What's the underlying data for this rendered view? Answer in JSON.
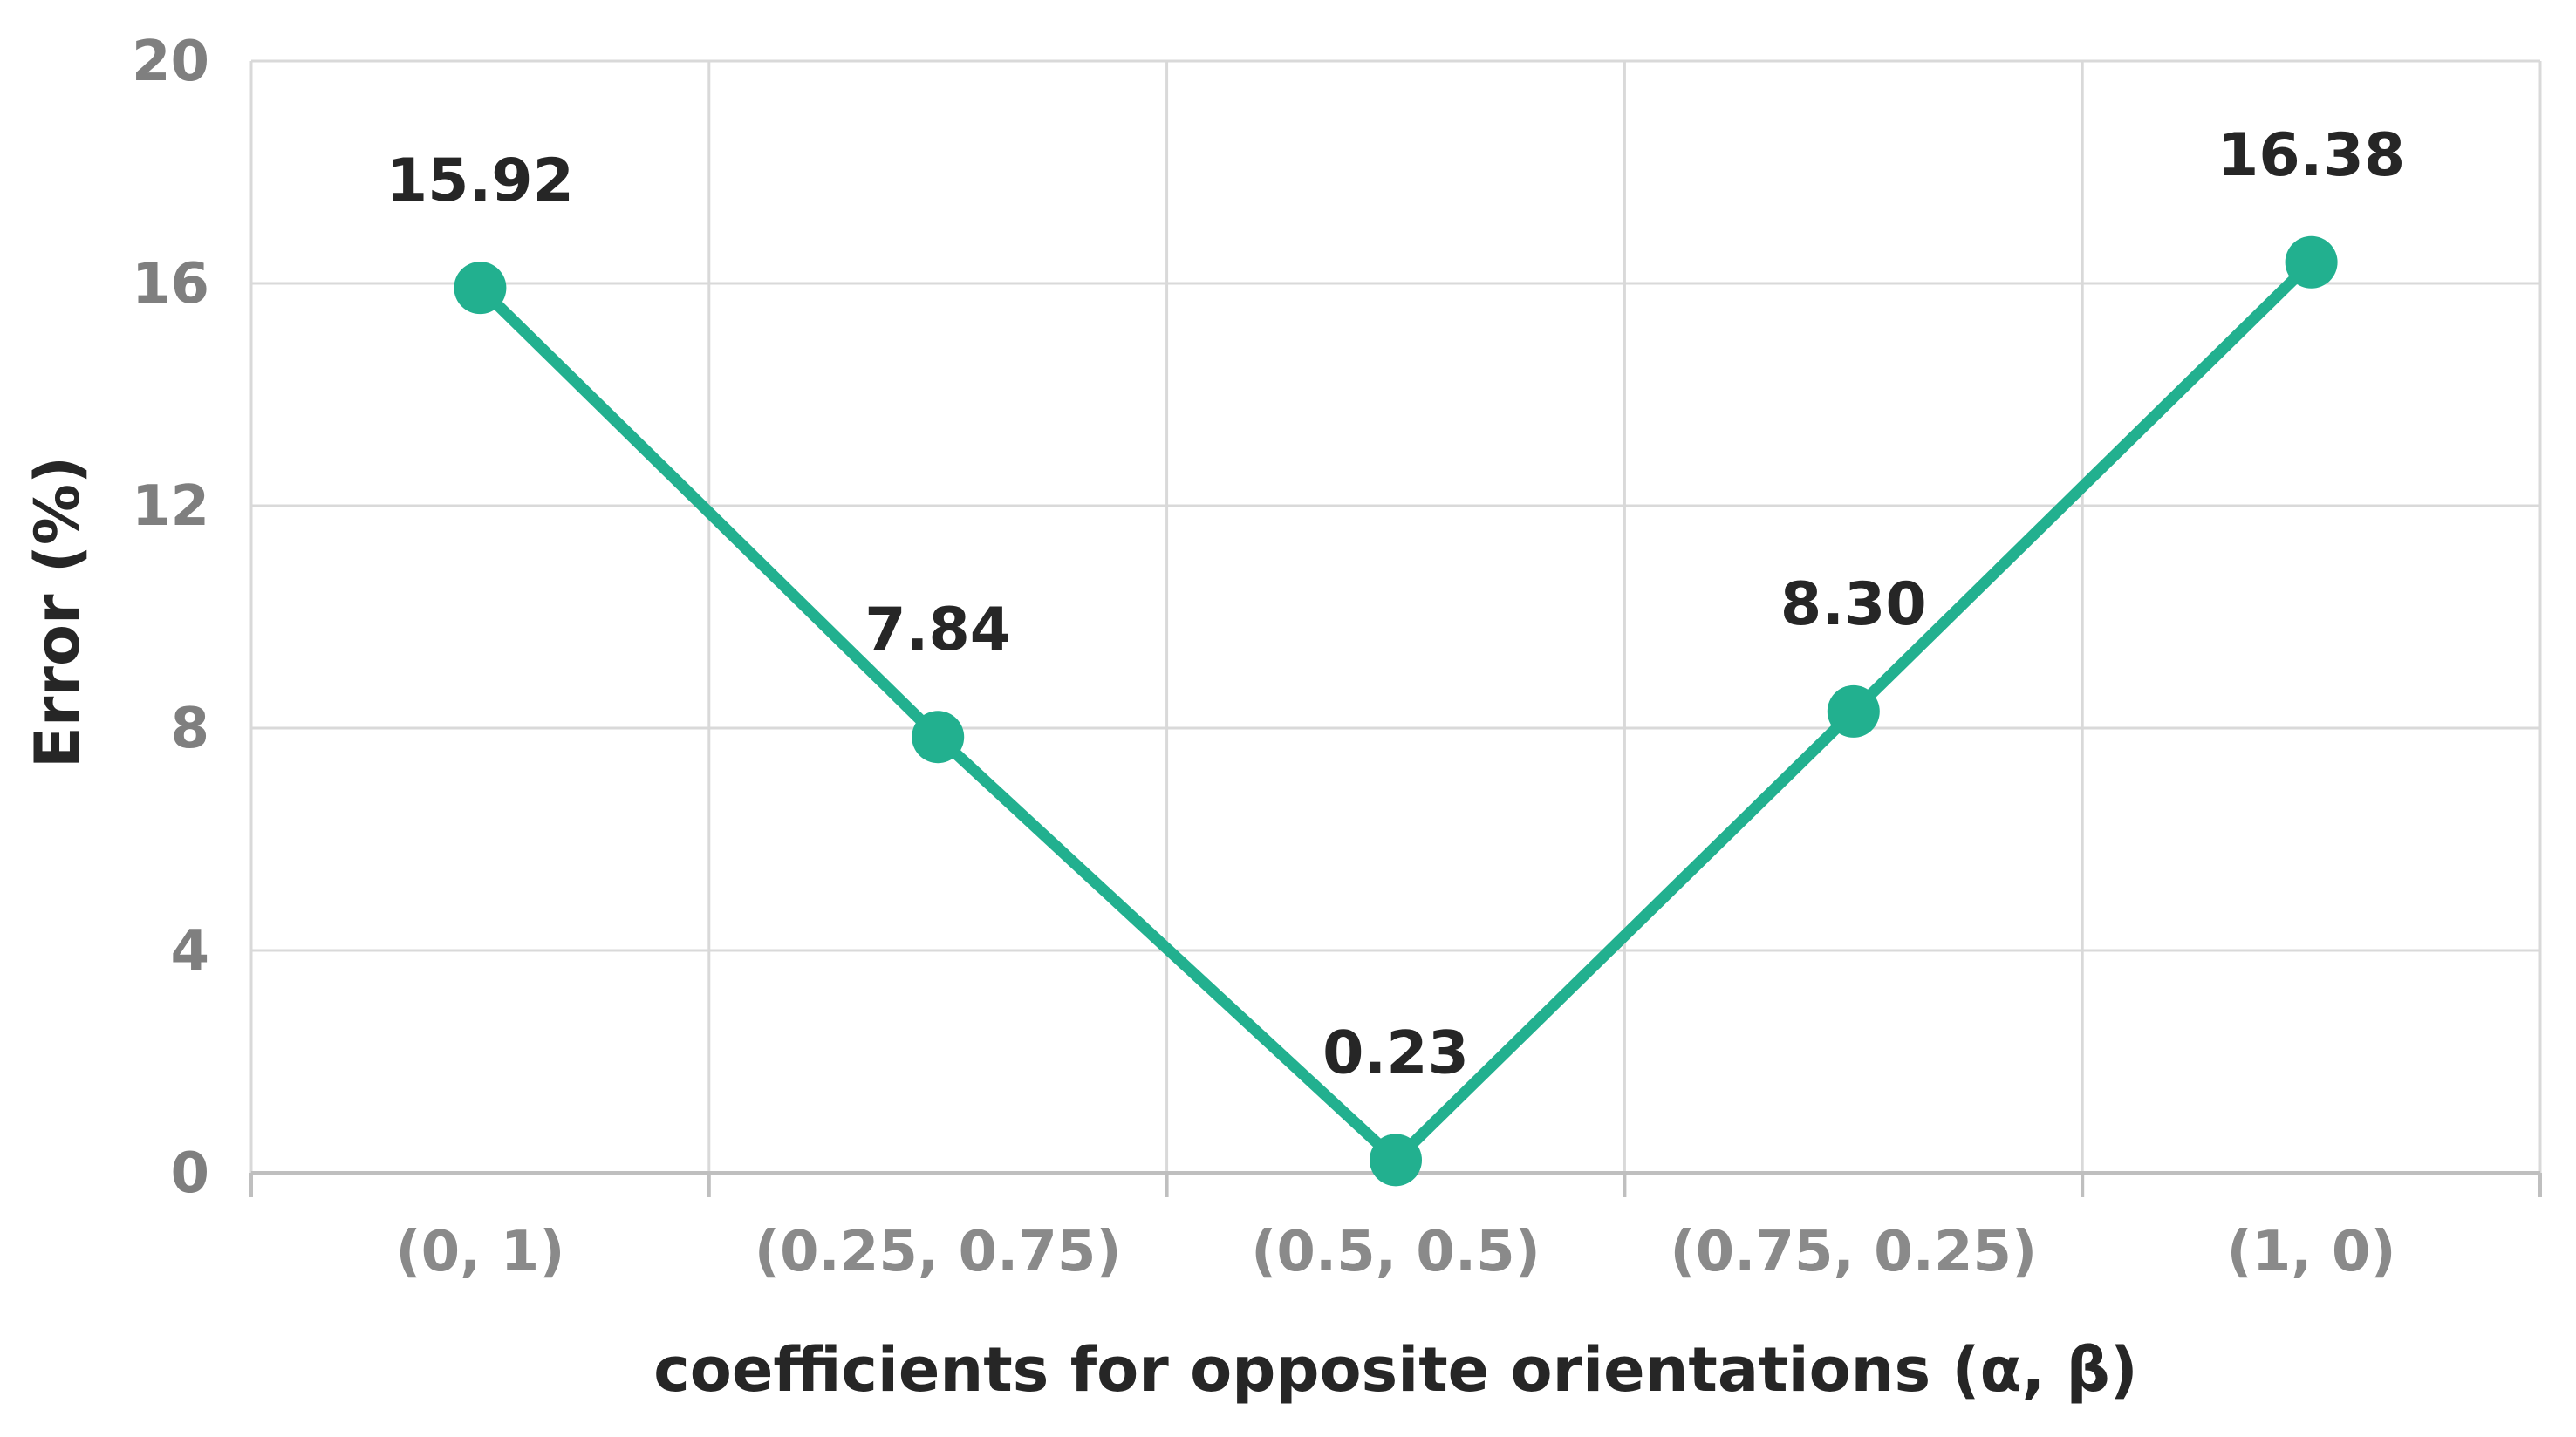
{
  "chart_data": {
    "type": "line",
    "title": "",
    "xlabel": "coefficients for opposite orientations (α, β)",
    "ylabel": "Error (%)",
    "categories": [
      "(0, 1)",
      "(0.25, 0.75)",
      "(0.5, 0.5)",
      "(0.75, 0.25)",
      "(1, 0)"
    ],
    "series": [
      {
        "values": [
          15.92,
          7.84,
          0.23,
          8.3,
          16.38
        ],
        "labels": [
          "15.92",
          "7.84",
          "0.23",
          "8.30",
          "16.38"
        ],
        "color": "#22b08f"
      }
    ],
    "ylim": [
      0,
      20
    ],
    "yticks": [
      0,
      4,
      8,
      12,
      16,
      20
    ],
    "ytick_labels": [
      "0",
      "4",
      "8",
      "12",
      "16",
      "20"
    ],
    "grid": true,
    "legend": "none"
  }
}
